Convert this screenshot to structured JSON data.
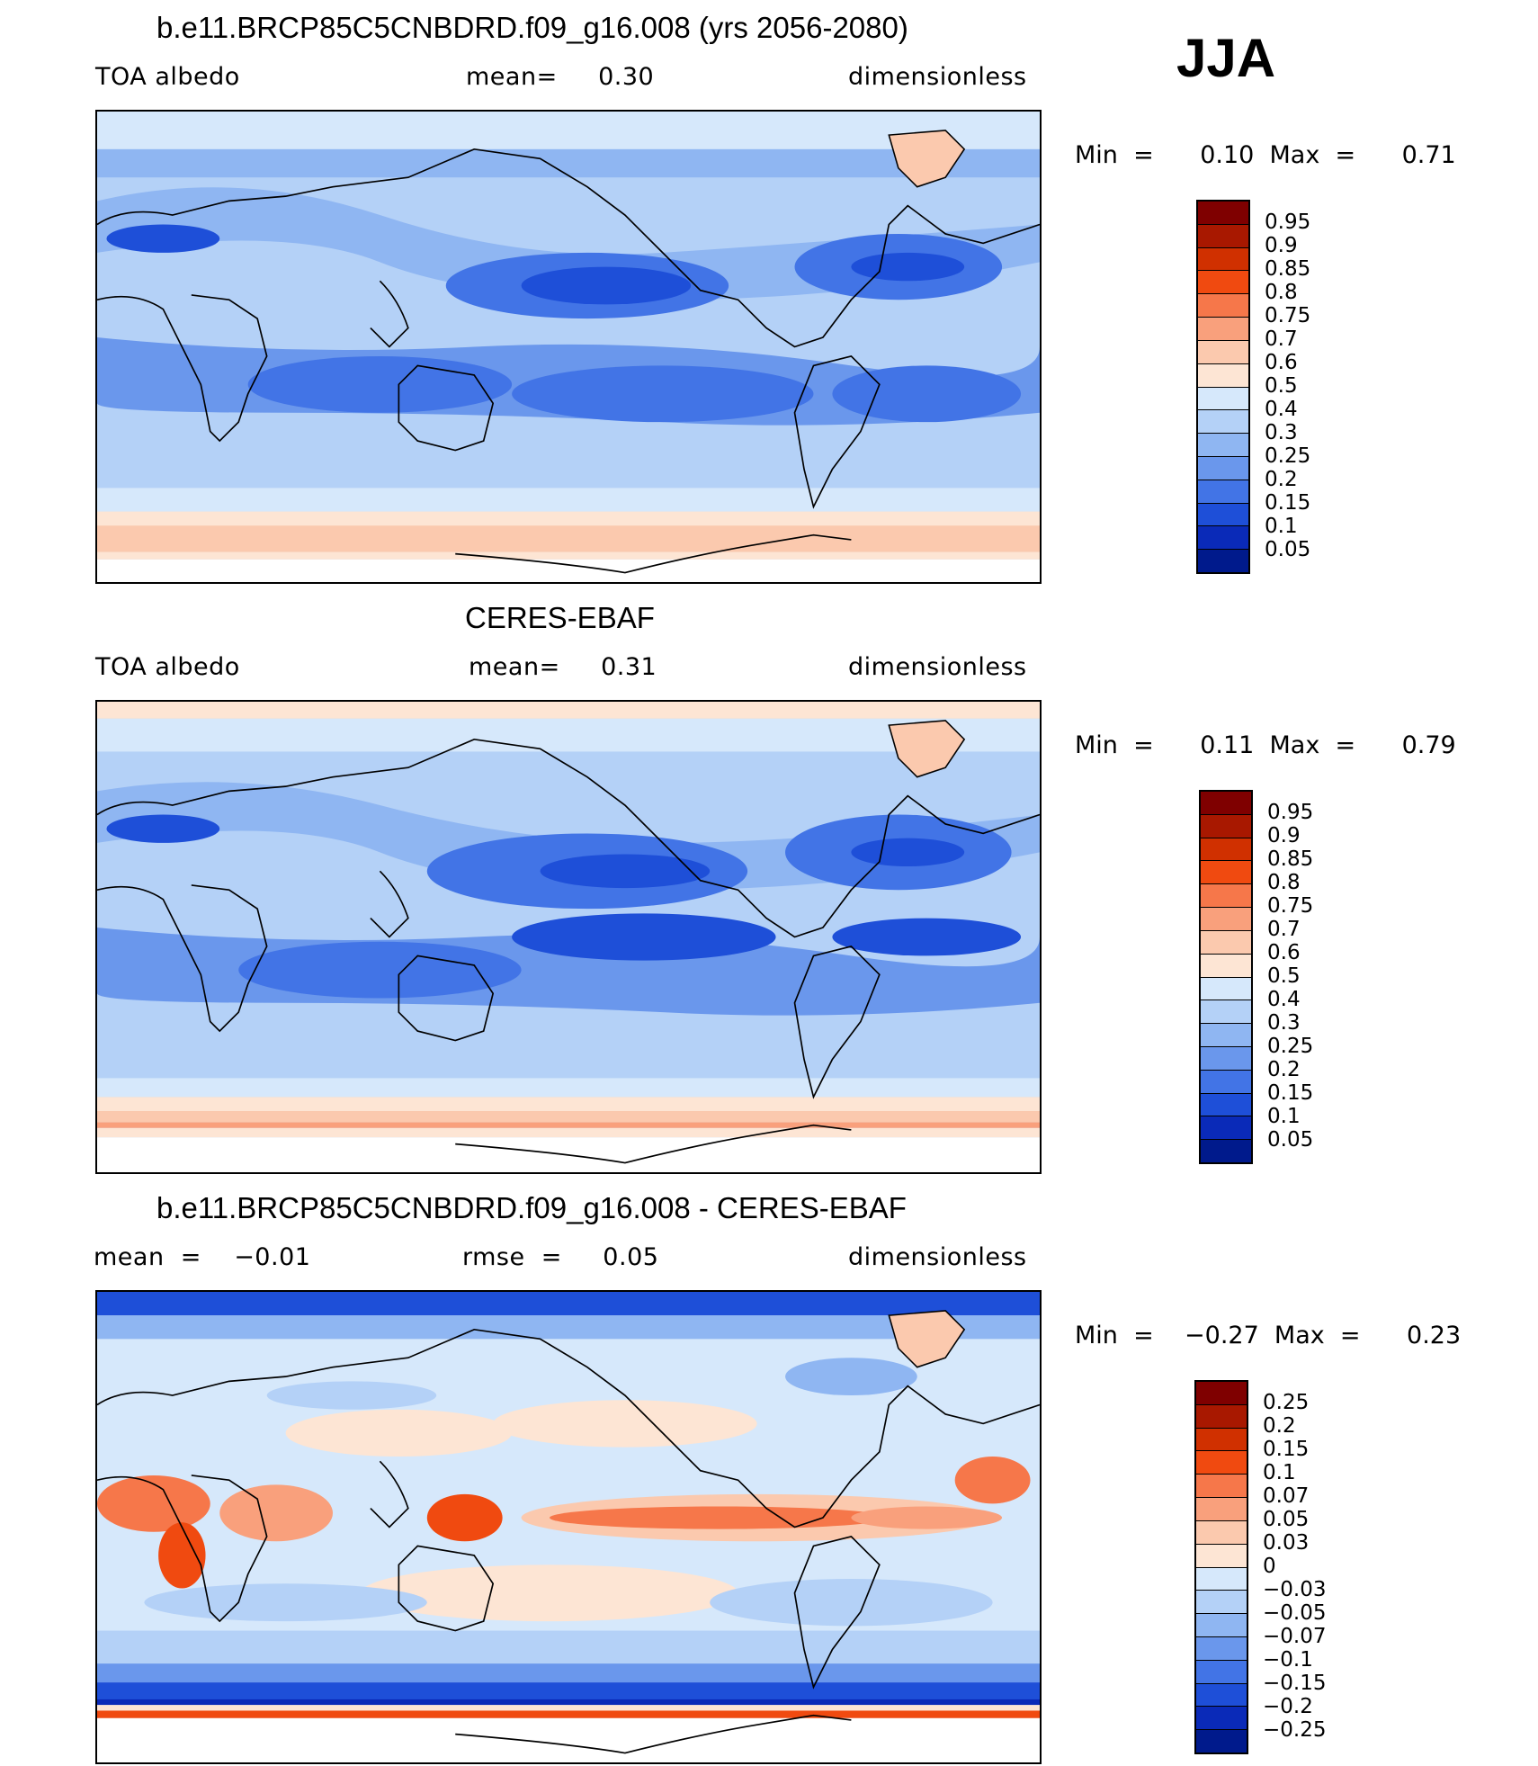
{
  "season": "JJA",
  "panels": [
    {
      "id": "model",
      "title": "b.e11.BRCP85C5CNBDRD.f09_g16.008 (yrs 2056-2080)",
      "left_label": "TOA  albedo",
      "center_label": "mean=     0.30",
      "right_label": "dimensionless",
      "min_label": "Min  =      0.10  Max  =      0.71",
      "colorbar": {
        "levels": [
          "0.95",
          "0.9",
          "0.85",
          "0.8",
          "0.75",
          "0.7",
          "0.6",
          "0.5",
          "0.4",
          "0.3",
          "0.25",
          "0.2",
          "0.15",
          "0.1",
          "0.05"
        ],
        "colors": [
          "#7f0000",
          "#a81800",
          "#d03000",
          "#f04a10",
          "#f6774a",
          "#f9a07c",
          "#fbc9ae",
          "#fde5d4",
          "#d6e8fb",
          "#b4d1f7",
          "#8fb6f2",
          "#6a97ec",
          "#4274e6",
          "#1e4fd8",
          "#0a2ab8",
          "#001a8c"
        ]
      },
      "chart_data": {
        "type": "heatmap",
        "variable": "TOA  albedo",
        "units": "dimensionless",
        "mean": 0.3,
        "min": 0.1,
        "max": 0.71,
        "contour_levels": [
          0.05,
          0.1,
          0.15,
          0.2,
          0.25,
          0.3,
          0.4,
          0.5,
          0.6,
          0.7,
          0.75,
          0.8,
          0.85,
          0.9,
          0.95
        ]
      }
    },
    {
      "id": "obs",
      "title": "CERES-EBAF",
      "left_label": "TOA  albedo",
      "center_label": "mean=     0.31",
      "right_label": "dimensionless",
      "min_label": "Min  =      0.11  Max  =      0.79",
      "colorbar": {
        "levels": [
          "0.95",
          "0.9",
          "0.85",
          "0.8",
          "0.75",
          "0.7",
          "0.6",
          "0.5",
          "0.4",
          "0.3",
          "0.25",
          "0.2",
          "0.15",
          "0.1",
          "0.05"
        ],
        "colors": [
          "#7f0000",
          "#a81800",
          "#d03000",
          "#f04a10",
          "#f6774a",
          "#f9a07c",
          "#fbc9ae",
          "#fde5d4",
          "#d6e8fb",
          "#b4d1f7",
          "#8fb6f2",
          "#6a97ec",
          "#4274e6",
          "#1e4fd8",
          "#0a2ab8",
          "#001a8c"
        ]
      },
      "chart_data": {
        "type": "heatmap",
        "variable": "TOA  albedo",
        "units": "dimensionless",
        "mean": 0.31,
        "min": 0.11,
        "max": 0.79,
        "contour_levels": [
          0.05,
          0.1,
          0.15,
          0.2,
          0.25,
          0.3,
          0.4,
          0.5,
          0.6,
          0.7,
          0.75,
          0.8,
          0.85,
          0.9,
          0.95
        ]
      }
    },
    {
      "id": "diff",
      "title": "b.e11.BRCP85C5CNBDRD.f09_g16.008 - CERES-EBAF",
      "left_label": "mean  =    −0.01",
      "center_label": "rmse  =     0.05",
      "right_label": "dimensionless",
      "min_label": "Min  =    −0.27  Max  =      0.23",
      "colorbar": {
        "levels": [
          "0.25",
          "0.2",
          "0.15",
          "0.1",
          "0.07",
          "0.05",
          "0.03",
          "0",
          "−0.03",
          "−0.05",
          "−0.07",
          "−0.1",
          "−0.15",
          "−0.2",
          "−0.25"
        ],
        "colors": [
          "#7f0000",
          "#a81800",
          "#d03000",
          "#f04a10",
          "#f6774a",
          "#f9a07c",
          "#fbc9ae",
          "#fde5d4",
          "#d6e8fb",
          "#b4d1f7",
          "#8fb6f2",
          "#6a97ec",
          "#4274e6",
          "#1e4fd8",
          "#0a2ab8",
          "#001a8c"
        ]
      },
      "chart_data": {
        "type": "heatmap",
        "variable": "TOA  albedo difference",
        "units": "dimensionless",
        "mean": -0.01,
        "rmse": 0.05,
        "min": -0.27,
        "max": 0.23,
        "contour_levels": [
          -0.25,
          -0.2,
          -0.15,
          -0.1,
          -0.07,
          -0.05,
          -0.03,
          0,
          0.03,
          0.05,
          0.07,
          0.1,
          0.15,
          0.2,
          0.25
        ]
      }
    }
  ]
}
